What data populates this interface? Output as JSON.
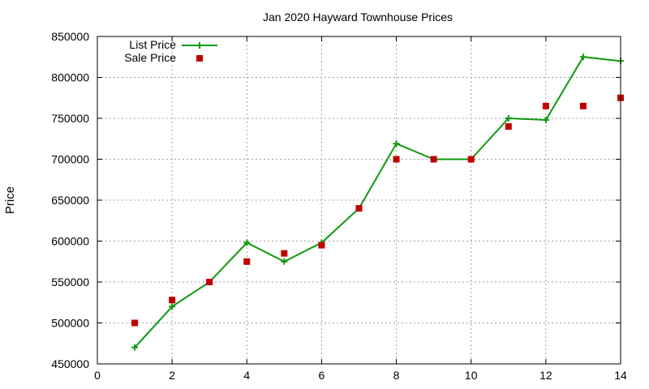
{
  "chart_data": {
    "type": "line",
    "title": "Jan 2020 Hayward Townhouse Prices",
    "xlabel": "",
    "ylabel": "Price",
    "xlim": [
      0,
      14
    ],
    "ylim": [
      450000,
      850000
    ],
    "x_ticks": [
      0,
      2,
      4,
      6,
      8,
      10,
      12,
      14
    ],
    "y_ticks": [
      450000,
      500000,
      550000,
      600000,
      650000,
      700000,
      750000,
      800000,
      850000
    ],
    "grid": true,
    "legend_position": "top-left",
    "series": [
      {
        "name": "List Price",
        "style": "line-with-plus-markers",
        "color": "#109910",
        "points": [
          {
            "x": 1,
            "y": 470000
          },
          {
            "x": 2,
            "y": 520000
          },
          {
            "x": 3,
            "y": 550000
          },
          {
            "x": 4,
            "y": 598000
          },
          {
            "x": 5,
            "y": 575000
          },
          {
            "x": 6,
            "y": 598000
          },
          {
            "x": 7,
            "y": 640000
          },
          {
            "x": 8,
            "y": 719000
          },
          {
            "x": 9,
            "y": 700000
          },
          {
            "x": 10,
            "y": 700000
          },
          {
            "x": 11,
            "y": 750000
          },
          {
            "x": 12,
            "y": 748000
          },
          {
            "x": 13,
            "y": 825000
          },
          {
            "x": 14,
            "y": 820000
          }
        ]
      },
      {
        "name": "Sale Price",
        "style": "square-markers",
        "color": "#c00000",
        "points": [
          {
            "x": 1,
            "y": 500000
          },
          {
            "x": 2,
            "y": 528000
          },
          {
            "x": 3,
            "y": 550000
          },
          {
            "x": 4,
            "y": 575000
          },
          {
            "x": 5,
            "y": 585000
          },
          {
            "x": 6,
            "y": 595000
          },
          {
            "x": 7,
            "y": 640000
          },
          {
            "x": 8,
            "y": 700000
          },
          {
            "x": 9,
            "y": 700000
          },
          {
            "x": 10,
            "y": 700000
          },
          {
            "x": 11,
            "y": 740000
          },
          {
            "x": 12,
            "y": 765000
          },
          {
            "x": 13,
            "y": 765000
          },
          {
            "x": 14,
            "y": 775000
          }
        ]
      }
    ]
  }
}
